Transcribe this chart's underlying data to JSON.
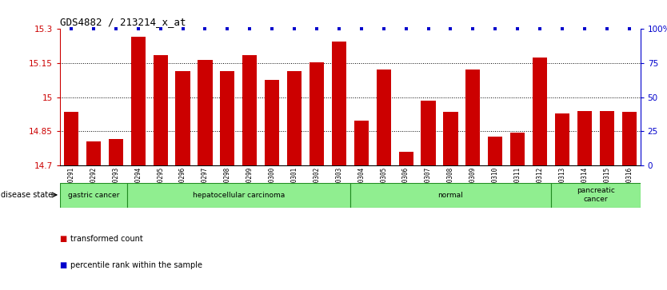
{
  "title": "GDS4882 / 213214_x_at",
  "samples": [
    "GSM1200291",
    "GSM1200292",
    "GSM1200293",
    "GSM1200294",
    "GSM1200295",
    "GSM1200296",
    "GSM1200297",
    "GSM1200298",
    "GSM1200299",
    "GSM1200300",
    "GSM1200301",
    "GSM1200302",
    "GSM1200303",
    "GSM1200304",
    "GSM1200305",
    "GSM1200306",
    "GSM1200307",
    "GSM1200308",
    "GSM1200309",
    "GSM1200310",
    "GSM1200311",
    "GSM1200312",
    "GSM1200313",
    "GSM1200314",
    "GSM1200315",
    "GSM1200316"
  ],
  "values": [
    14.935,
    14.805,
    14.815,
    15.265,
    15.185,
    15.115,
    15.165,
    15.115,
    15.185,
    15.075,
    15.115,
    15.155,
    15.245,
    14.895,
    15.12,
    14.76,
    14.985,
    14.935,
    15.12,
    14.825,
    14.845,
    15.175,
    14.93,
    14.94,
    14.94,
    14.935
  ],
  "percentile_has_marker": [
    true,
    false,
    false,
    true,
    false,
    true,
    true,
    false,
    true,
    false,
    true,
    false,
    true,
    false,
    true,
    false,
    false,
    false,
    true,
    false,
    false,
    true,
    false,
    false,
    true,
    true
  ],
  "disease_groups": [
    {
      "label": "gastric cancer",
      "start": 0,
      "end": 3
    },
    {
      "label": "hepatocellular carcinoma",
      "start": 3,
      "end": 13
    },
    {
      "label": "normal",
      "start": 13,
      "end": 22
    },
    {
      "label": "pancreatic\ncancer",
      "start": 22,
      "end": 26
    }
  ],
  "bar_color": "#CC0000",
  "percentile_color": "#0000CC",
  "ylim_left": [
    14.7,
    15.3
  ],
  "ylim_right": [
    0,
    100
  ],
  "yticks_left": [
    14.7,
    14.85,
    15.0,
    15.15,
    15.3
  ],
  "yticks_right": [
    0,
    25,
    50,
    75,
    100
  ],
  "ytick_labels_left": [
    "14.7",
    "14.85",
    "15",
    "15.15",
    "15.3"
  ],
  "ytick_labels_right": [
    "0",
    "25",
    "50",
    "75",
    "100%"
  ],
  "grid_lines": [
    14.85,
    15.0,
    15.15
  ],
  "bg_color": "#FFFFFF",
  "plot_bg_color": "#FFFFFF",
  "band_color": "#90EE90",
  "band_edge_color": "#228B22",
  "disease_state_label": "disease state"
}
